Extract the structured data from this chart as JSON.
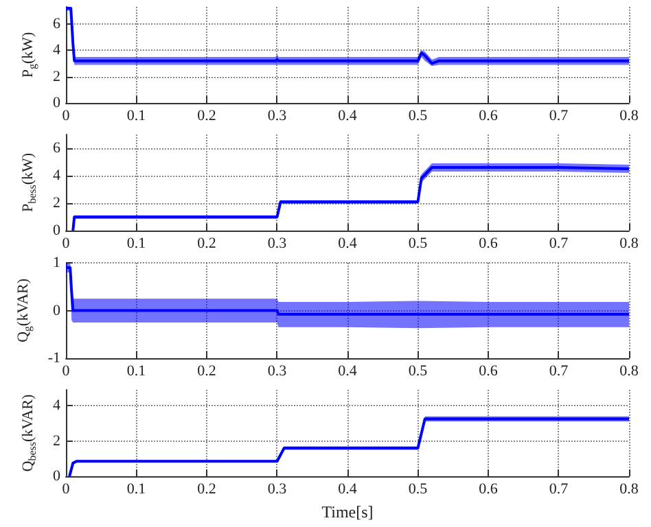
{
  "chart_data": [
    {
      "type": "line",
      "ylabel": "P$_{g}$(kW)",
      "xlim": [
        0,
        0.8
      ],
      "xticks": [
        0,
        0.1,
        0.2,
        0.3,
        0.4,
        0.5,
        0.6,
        0.7,
        0.8
      ],
      "ylim": [
        0,
        7.3
      ],
      "yticks": [
        0,
        2,
        4,
        6
      ],
      "grid": true,
      "series": [
        {
          "color": "#0000ff",
          "x": [
            0,
            0.007,
            0.01,
            0.012,
            0.1,
            0.2,
            0.298,
            0.3,
            0.302,
            0.4,
            0.5,
            0.505,
            0.51,
            0.52,
            0.53,
            0.6,
            0.7,
            0.8
          ],
          "values": [
            7.2,
            7.2,
            4.5,
            3.2,
            3.2,
            3.2,
            3.2,
            3.3,
            3.2,
            3.2,
            3.2,
            3.8,
            3.6,
            3.0,
            3.2,
            3.2,
            3.2,
            3.2
          ],
          "lower": [
            7.0,
            7.0,
            4.0,
            2.9,
            2.9,
            2.9,
            2.9,
            2.9,
            2.9,
            2.9,
            2.9,
            3.5,
            3.2,
            2.8,
            2.9,
            2.9,
            2.9,
            2.9
          ],
          "upper": [
            7.3,
            7.3,
            5.0,
            3.5,
            3.5,
            3.5,
            3.5,
            3.7,
            3.5,
            3.5,
            3.5,
            4.0,
            3.9,
            3.3,
            3.5,
            3.5,
            3.5,
            3.5
          ]
        }
      ]
    },
    {
      "type": "line",
      "ylabel": "P$_{bess}$(kW)",
      "xlim": [
        0,
        0.8
      ],
      "xticks": [
        0,
        0.1,
        0.2,
        0.3,
        0.4,
        0.5,
        0.6,
        0.7,
        0.8
      ],
      "ylim": [
        0,
        7
      ],
      "yticks": [
        0,
        2,
        4,
        6
      ],
      "grid": true,
      "series": [
        {
          "color": "#0000ff",
          "x": [
            0.01,
            0.012,
            0.1,
            0.2,
            0.3,
            0.305,
            0.4,
            0.5,
            0.505,
            0.52,
            0.6,
            0.7,
            0.8
          ],
          "values": [
            0,
            1.0,
            1.0,
            1.0,
            1.0,
            2.1,
            2.1,
            2.1,
            3.8,
            4.6,
            4.6,
            4.6,
            4.5
          ],
          "lower": [
            0,
            0.85,
            0.85,
            0.85,
            0.85,
            1.95,
            1.95,
            1.95,
            3.5,
            4.3,
            4.3,
            4.3,
            4.2
          ],
          "upper": [
            0,
            1.1,
            1.1,
            1.1,
            1.1,
            2.2,
            2.2,
            2.2,
            4.1,
            4.9,
            4.9,
            4.9,
            4.8
          ]
        }
      ]
    },
    {
      "type": "line",
      "ylabel": "Q$_{g}$(kVAR)",
      "xlim": [
        0,
        0.8
      ],
      "xticks": [
        0,
        0.1,
        0.2,
        0.3,
        0.4,
        0.5,
        0.6,
        0.7,
        0.8
      ],
      "ylim": [
        -1,
        1
      ],
      "yticks": [
        -1,
        0,
        1
      ],
      "grid": true,
      "series": [
        {
          "color": "#0000ff",
          "x": [
            0,
            0.006,
            0.008,
            0.01,
            0.1,
            0.2,
            0.3,
            0.302,
            0.4,
            0.5,
            0.6,
            0.7,
            0.8
          ],
          "values": [
            0.9,
            0.9,
            0.4,
            0,
            0,
            0,
            0,
            -0.08,
            -0.08,
            -0.08,
            -0.08,
            -0.08,
            -0.08
          ],
          "lower": [
            0.8,
            0.8,
            -0.2,
            -0.25,
            -0.25,
            -0.25,
            -0.25,
            -0.35,
            -0.35,
            -0.37,
            -0.35,
            -0.35,
            -0.35
          ],
          "upper": [
            1.0,
            1.0,
            0.7,
            0.25,
            0.25,
            0.25,
            0.25,
            0.18,
            0.18,
            0.2,
            0.18,
            0.18,
            0.18
          ]
        }
      ]
    },
    {
      "type": "line",
      "ylabel": "Q$_{bess}$(kVAR)",
      "xlabel": "Time[s]",
      "xlim": [
        0,
        0.8
      ],
      "xticks": [
        0,
        0.1,
        0.2,
        0.3,
        0.4,
        0.5,
        0.6,
        0.7,
        0.8
      ],
      "ylim": [
        0,
        4.9
      ],
      "yticks": [
        0,
        2,
        4
      ],
      "grid": true,
      "series": [
        {
          "color": "#0000ff",
          "x": [
            0.005,
            0.01,
            0.015,
            0.1,
            0.2,
            0.3,
            0.31,
            0.4,
            0.5,
            0.51,
            0.6,
            0.7,
            0.8
          ],
          "values": [
            0,
            0.75,
            0.85,
            0.85,
            0.85,
            0.85,
            1.6,
            1.6,
            1.6,
            3.25,
            3.25,
            3.25,
            3.25
          ],
          "lower": [
            0,
            0.7,
            0.78,
            0.78,
            0.78,
            0.78,
            1.5,
            1.5,
            1.5,
            3.1,
            3.1,
            3.1,
            3.1
          ],
          "upper": [
            0,
            0.8,
            0.92,
            0.92,
            0.92,
            0.92,
            1.7,
            1.7,
            1.7,
            3.4,
            3.4,
            3.4,
            3.4
          ]
        }
      ]
    }
  ]
}
